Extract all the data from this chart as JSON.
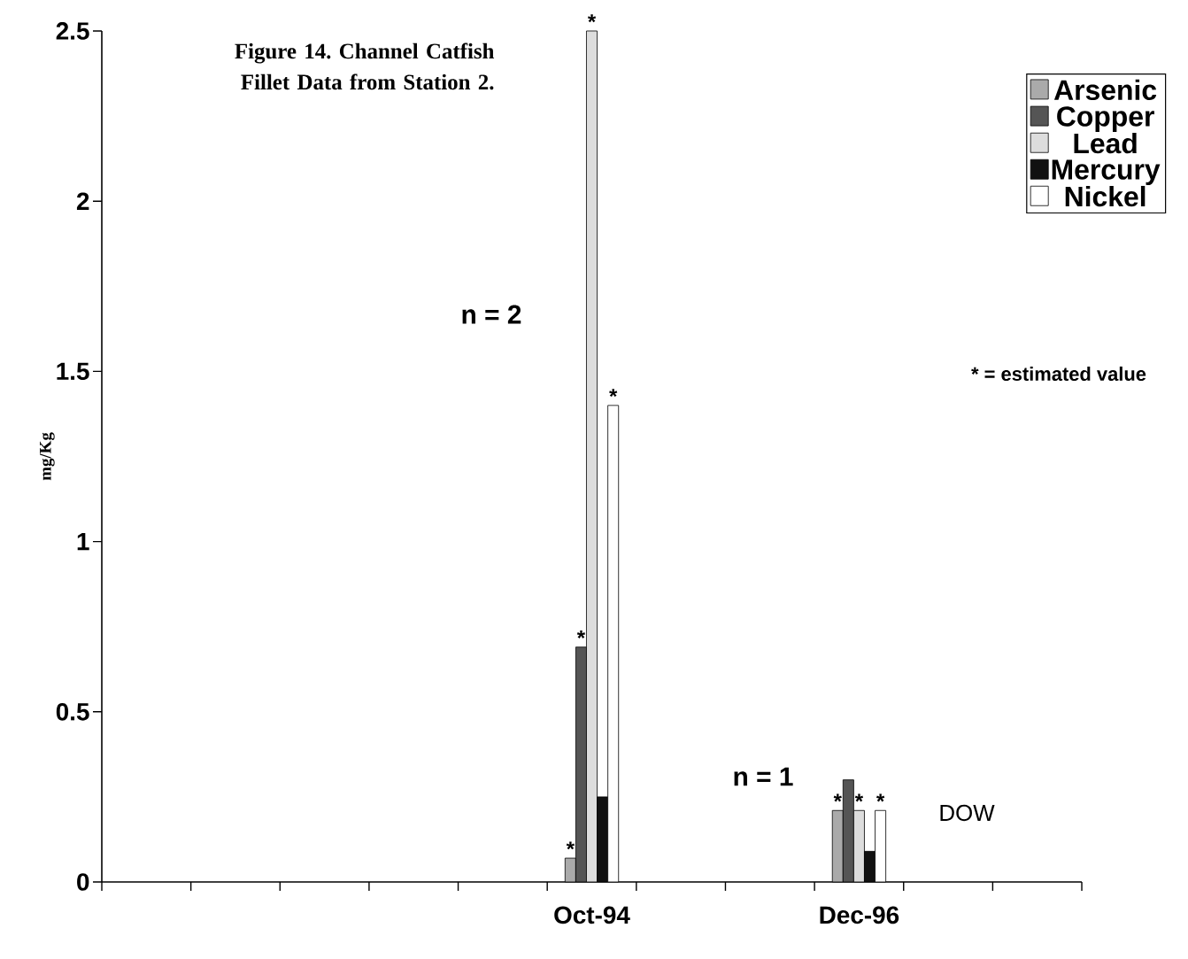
{
  "chart_data": {
    "type": "bar",
    "title": "Figure 14. Channel Catfish Fillet Data from Station 2.",
    "ylabel": "mg/Kg",
    "categories": [
      null,
      null,
      null,
      null,
      null,
      "Oct-94",
      null,
      null,
      "Dec-96",
      null,
      null
    ],
    "series": [
      {
        "name": "Arsenic",
        "color": "#aaaaaa",
        "values": [
          null,
          null,
          null,
          null,
          null,
          0.07,
          null,
          null,
          0.21,
          null,
          null
        ],
        "value_labels": [
          null,
          null,
          null,
          null,
          null,
          "*",
          null,
          null,
          "*",
          null,
          null
        ]
      },
      {
        "name": "Copper",
        "color": "#555555",
        "values": [
          null,
          null,
          null,
          null,
          null,
          0.69,
          null,
          null,
          0.3,
          null,
          null
        ],
        "value_labels": [
          null,
          null,
          null,
          null,
          null,
          "*",
          null,
          null,
          null,
          null,
          null
        ]
      },
      {
        "name": "Lead",
        "color": "#dddddd",
        "values": [
          null,
          null,
          null,
          null,
          null,
          2.5,
          null,
          null,
          0.21,
          null,
          null
        ],
        "value_labels": [
          null,
          null,
          null,
          null,
          null,
          "*",
          null,
          null,
          "*",
          null,
          null
        ]
      },
      {
        "name": "Mercury",
        "color": "#111111",
        "values": [
          null,
          null,
          null,
          null,
          null,
          0.25,
          null,
          null,
          0.09,
          null,
          null
        ],
        "value_labels": [
          null,
          null,
          null,
          null,
          null,
          null,
          null,
          null,
          null,
          null,
          null
        ]
      },
      {
        "name": "Nickel",
        "color": "#ffffff",
        "values": [
          null,
          null,
          null,
          null,
          null,
          1.4,
          null,
          null,
          0.21,
          null,
          null
        ],
        "value_labels": [
          null,
          null,
          null,
          null,
          null,
          "*",
          null,
          null,
          "*",
          null,
          null
        ]
      }
    ],
    "ylim": [
      0,
      2.5
    ],
    "yticks": [
      0,
      0.5,
      1,
      1.5,
      2,
      2.5
    ],
    "grid": false,
    "legend": "top right",
    "annotations": [
      "n = 2",
      "n = 1",
      "* = estimated value",
      "DOW"
    ]
  }
}
